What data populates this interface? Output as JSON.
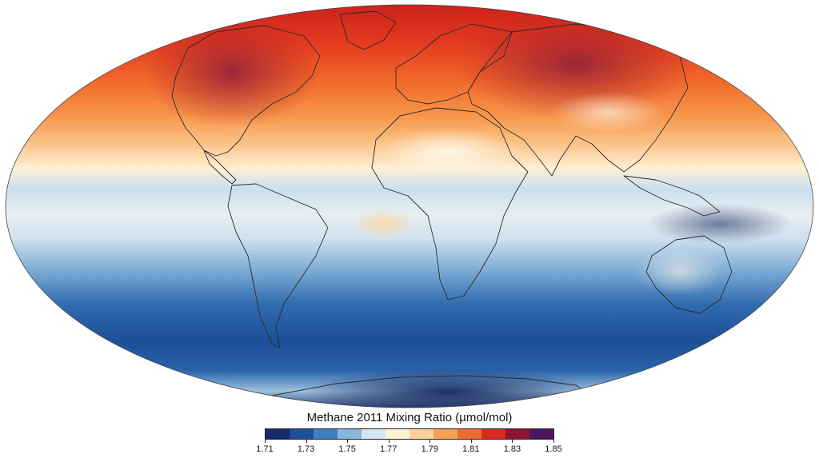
{
  "map": {
    "title": "Methane 2011 Mixing Ratio (µmol/mol)",
    "projection": "mollweide",
    "colormap": [
      "#132a6b",
      "#1f4f9a",
      "#3f7fbf",
      "#8ab6d9",
      "#d6e6f0",
      "#fbf3d6",
      "#fdd29a",
      "#f9a056",
      "#ef6b31",
      "#d42c1f",
      "#8c1530",
      "#4a1660"
    ]
  },
  "legend": {
    "ticks": [
      "1.71",
      "1.73",
      "1.75",
      "1.77",
      "1.79",
      "1.81",
      "1.83",
      "1.85"
    ]
  }
}
